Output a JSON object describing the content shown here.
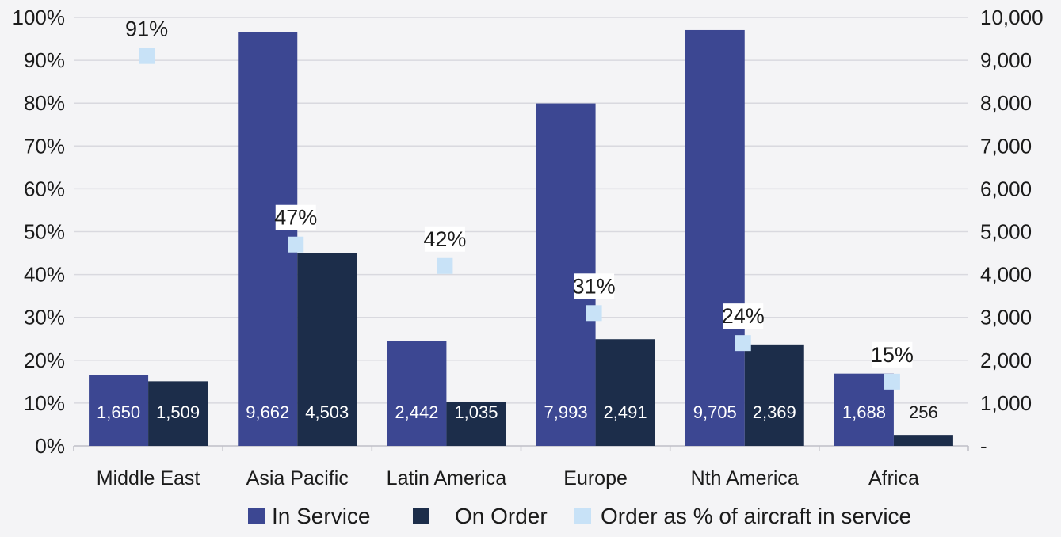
{
  "chart_data": {
    "type": "bar",
    "categories": [
      "Middle East",
      "Asia Pacific",
      "Latin America",
      "Europe",
      "Nth America",
      "Africa"
    ],
    "series": [
      {
        "name": "In Service",
        "axis": "right",
        "values": [
          1650,
          9662,
          2442,
          7993,
          9705,
          1688
        ],
        "labels": [
          "1,650",
          "9,662",
          "2,442",
          "7,993",
          "9,705",
          "1,688"
        ],
        "color": "#3c4792"
      },
      {
        "name": "On Order",
        "axis": "right",
        "values": [
          1509,
          4503,
          1035,
          2491,
          2369,
          256
        ],
        "labels": [
          "1,509",
          "4,503",
          "1,035",
          "2,491",
          "2,369",
          "256"
        ],
        "color": "#1c2d4a"
      },
      {
        "name": "Order as % of aircraft in service",
        "axis": "left",
        "type": "scatter",
        "values": [
          91,
          47,
          42,
          31,
          24,
          15
        ],
        "labels": [
          "91%",
          "47%",
          "42%",
          "31%",
          "24%",
          "15%"
        ],
        "color": "#c8e2f7"
      }
    ],
    "left_axis": {
      "ticks": [
        "0%",
        "10%",
        "20%",
        "30%",
        "40%",
        "50%",
        "60%",
        "70%",
        "80%",
        "90%",
        "100%"
      ],
      "range": [
        0,
        100
      ]
    },
    "right_axis": {
      "ticks": [
        "-",
        "1,000",
        "2,000",
        "3,000",
        "4,000",
        "5,000",
        "6,000",
        "7,000",
        "8,000",
        "9,000",
        "10,000"
      ],
      "range": [
        0,
        10000
      ]
    },
    "grid": true,
    "legend": "bottom"
  }
}
